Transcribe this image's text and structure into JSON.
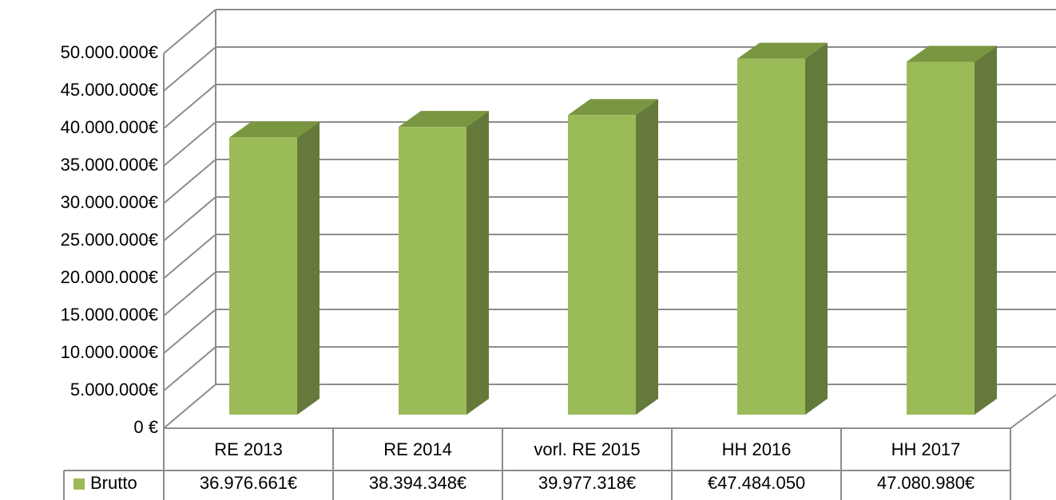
{
  "chart_data": {
    "type": "bar",
    "categories": [
      "RE 2013",
      "RE 2014",
      "vorl. RE 2015",
      "HH 2016",
      "HH 2017"
    ],
    "series": [
      {
        "name": "Brutto",
        "color": "#9bbb59",
        "values": [
          36976661,
          38394348,
          39977318,
          47484050,
          47080980
        ],
        "value_labels": [
          "36.976.661€",
          "38.394.348€",
          "39.977.318€",
          "€47.484.050",
          "47.080.980€"
        ]
      }
    ],
    "ylim": [
      0,
      50000000
    ],
    "yticks": [
      {
        "value": 0,
        "label": "0 €"
      },
      {
        "value": 5000000,
        "label": "5.000.000€"
      },
      {
        "value": 10000000,
        "label": "10.000.000€"
      },
      {
        "value": 15000000,
        "label": "15.000.000€"
      },
      {
        "value": 20000000,
        "label": "20.000.000€"
      },
      {
        "value": 25000000,
        "label": "25.000.000€"
      },
      {
        "value": 30000000,
        "label": "30.000.000€"
      },
      {
        "value": 35000000,
        "label": "35.000.000€"
      },
      {
        "value": 40000000,
        "label": "40.000.000€"
      },
      {
        "value": 45000000,
        "label": "45.000.000€"
      },
      {
        "value": 50000000,
        "label": "50.000.000€"
      }
    ],
    "grid": true,
    "legend": "table"
  }
}
